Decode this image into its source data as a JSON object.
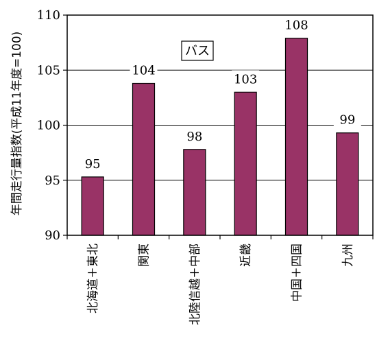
{
  "chart_data": {
    "type": "bar",
    "categories": [
      "北海道＋東北",
      "関東",
      "北陸信越＋中部",
      "近畿",
      "中国＋四国",
      "九州"
    ],
    "values": [
      95.3,
      103.8,
      97.8,
      103.0,
      107.9,
      99.3
    ],
    "data_labels": [
      "95",
      "104",
      "98",
      "103",
      "108",
      "99"
    ],
    "ylabel": "年間走行量指数(平成11年度=100)",
    "legend": "バス",
    "legend_position": "top-center",
    "ylim": [
      90,
      110
    ],
    "yticks": [
      90,
      95,
      100,
      105,
      110
    ],
    "ytick_labels": [
      "90",
      "95",
      "100",
      "105",
      "110"
    ],
    "grid": true,
    "colors": {
      "bar": "#993366",
      "bar_edge": "#000000",
      "grid": "#000000"
    }
  }
}
